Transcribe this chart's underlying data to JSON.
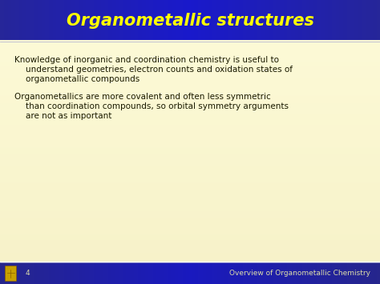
{
  "title": "Organometallic structures",
  "title_color": "#FFFF00",
  "title_bg_color": "#2233CC",
  "title_fontsize": 15,
  "body_bg_color": "#FEFBD8",
  "footer_bg_color": "#2233CC",
  "body_text_color": "#1A1A00",
  "footer_text_color": "#DDDDAA",
  "slide_number": "4",
  "footer_right": "Overview of Organometallic Chemistry",
  "bullet1_line1": "Knowledge of inorganic and coordination chemistry is useful to",
  "bullet1_line2": "understand geometries, electron counts and oxidation states of",
  "bullet1_line3": "organometallic compounds",
  "bullet2_line1": "Organometallics are more covalent and often less symmetric",
  "bullet2_line2": "than coordination compounds, so orbital symmetry arguments",
  "bullet2_line3": "are not as important",
  "body_fontsize": 7.5,
  "footer_fontsize": 6.5
}
